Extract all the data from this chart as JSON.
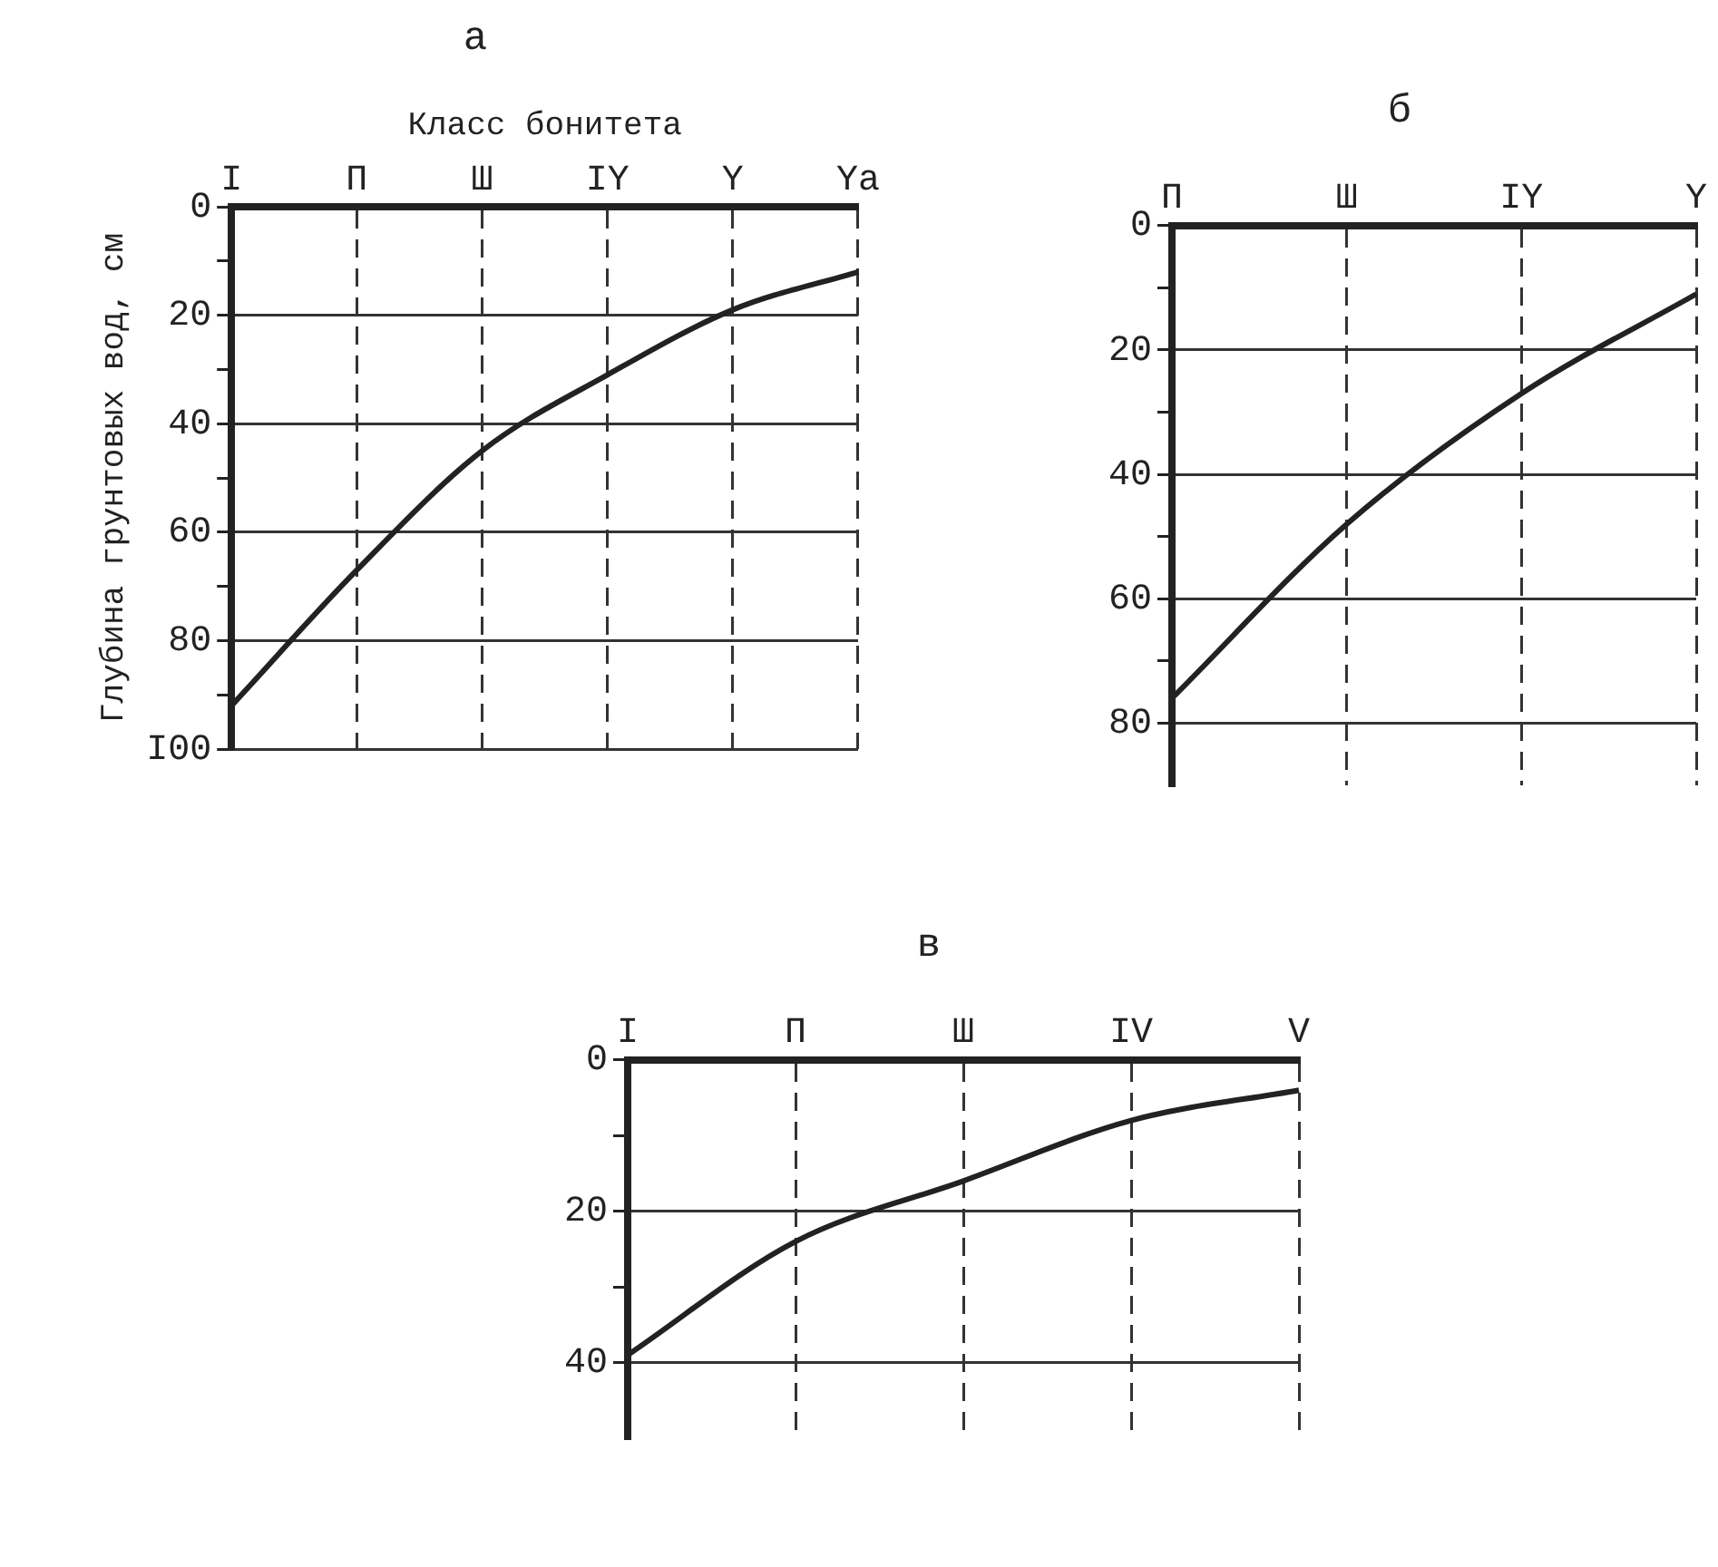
{
  "chart_data": [
    {
      "type": "line",
      "title": "а",
      "xlabel": "Класс бонитета",
      "ylabel": "Глубина грунтовых вод, см",
      "categories": [
        "I",
        "П",
        "Ш",
        "IY",
        "Y",
        "Ya"
      ],
      "series": [
        {
          "color": "#222222",
          "values": [
            92,
            67,
            45,
            31,
            19,
            12
          ]
        }
      ],
      "ylim": [
        100,
        0
      ],
      "yticks": [
        0,
        {
          "value": 10,
          "label": null
        },
        20,
        {
          "value": 30,
          "label": null
        },
        40,
        {
          "value": 50,
          "label": null
        },
        60,
        {
          "value": 70,
          "label": null
        },
        80,
        {
          "value": 90,
          "label": null
        },
        {
          "value": 100,
          "label": "I00"
        }
      ],
      "grid": true,
      "marker": "none",
      "line_style": "solid"
    },
    {
      "type": "line",
      "title": "б",
      "categories": [
        "П",
        "Ш",
        "IY",
        "Y"
      ],
      "series": [
        {
          "color": "#222222",
          "values": [
            76,
            48,
            27,
            11
          ]
        }
      ],
      "ylim": [
        90,
        0
      ],
      "yticks": [
        0,
        {
          "value": 10,
          "label": null
        },
        20,
        {
          "value": 30,
          "label": null
        },
        40,
        {
          "value": 50,
          "label": null
        },
        60,
        {
          "value": 70,
          "label": null
        },
        80
      ],
      "grid": true,
      "marker": "none",
      "line_style": "solid"
    },
    {
      "type": "line",
      "title": "в",
      "categories": [
        "I",
        "П",
        "Ш",
        "IV",
        "V"
      ],
      "series": [
        {
          "color": "#222222",
          "values": [
            39,
            24,
            16,
            8,
            4
          ]
        }
      ],
      "ylim": [
        50,
        0
      ],
      "yticks": [
        0,
        {
          "value": 10,
          "label": null
        },
        20,
        {
          "value": 30,
          "label": null
        },
        40
      ],
      "grid": true,
      "marker": "none",
      "line_style": "solid"
    }
  ]
}
